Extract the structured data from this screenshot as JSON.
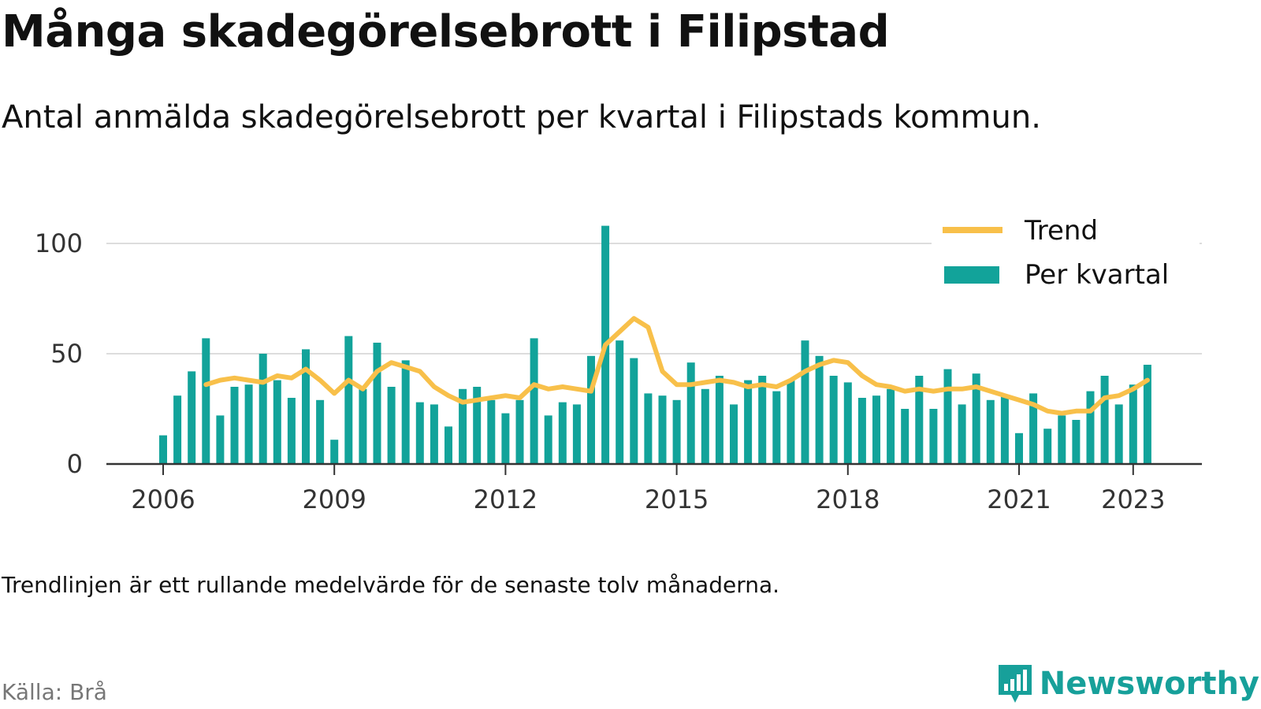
{
  "title": "Många skadegörelsebrott i Filipstad",
  "subtitle": "Antal anmälda skadegörelsebrott per kvartal i Filipstads kommun.",
  "footnote": "Trendlinjen är ett rullande medelvärde för de senaste tolv månaderna.",
  "source": "Källa: Brå",
  "brand": "Newsworthy",
  "colors": {
    "bar": "#12a39a",
    "trend": "#f8c04a",
    "grid": "#dddddd",
    "axis": "#333333",
    "brand": "#17a09a"
  },
  "chart_data": {
    "type": "bar",
    "x_start": "2006 Q1",
    "x_ticks": [
      "2006",
      "2009",
      "2012",
      "2015",
      "2018",
      "2021",
      "2023"
    ],
    "y_ticks": [
      "0",
      "50",
      "100"
    ],
    "ylim": [
      0,
      110
    ],
    "legend": {
      "placement": "top-right",
      "entries": [
        "Trend",
        "Per kvartal"
      ]
    },
    "series": [
      {
        "name": "Per kvartal",
        "type": "bar",
        "values": [
          13,
          31,
          42,
          57,
          22,
          35,
          36,
          50,
          38,
          30,
          52,
          29,
          11,
          58,
          34,
          55,
          35,
          47,
          28,
          27,
          17,
          34,
          35,
          29,
          23,
          29,
          57,
          22,
          28,
          27,
          49,
          108,
          56,
          48,
          32,
          31,
          29,
          46,
          34,
          40,
          27,
          38,
          40,
          33,
          38,
          56,
          49,
          40,
          37,
          30,
          31,
          34,
          25,
          40,
          25,
          43,
          27,
          41,
          29,
          31,
          14,
          32,
          16,
          22,
          20,
          33,
          40,
          27,
          36,
          45
        ]
      },
      {
        "name": "Trend",
        "type": "line",
        "start_index": 3,
        "values": [
          36,
          38,
          39,
          38,
          37,
          40,
          39,
          43,
          38,
          32,
          38,
          34,
          42,
          46,
          44,
          42,
          35,
          31,
          28,
          29,
          30,
          31,
          30,
          36,
          34,
          35,
          34,
          33,
          54,
          60,
          66,
          62,
          42,
          36,
          36,
          37,
          38,
          37,
          35,
          36,
          35,
          38,
          42,
          45,
          47,
          46,
          40,
          36,
          35,
          33,
          34,
          33,
          34,
          34,
          35,
          33,
          31,
          29,
          27,
          24,
          23,
          24,
          24,
          30,
          31,
          34,
          38
        ]
      }
    ]
  }
}
